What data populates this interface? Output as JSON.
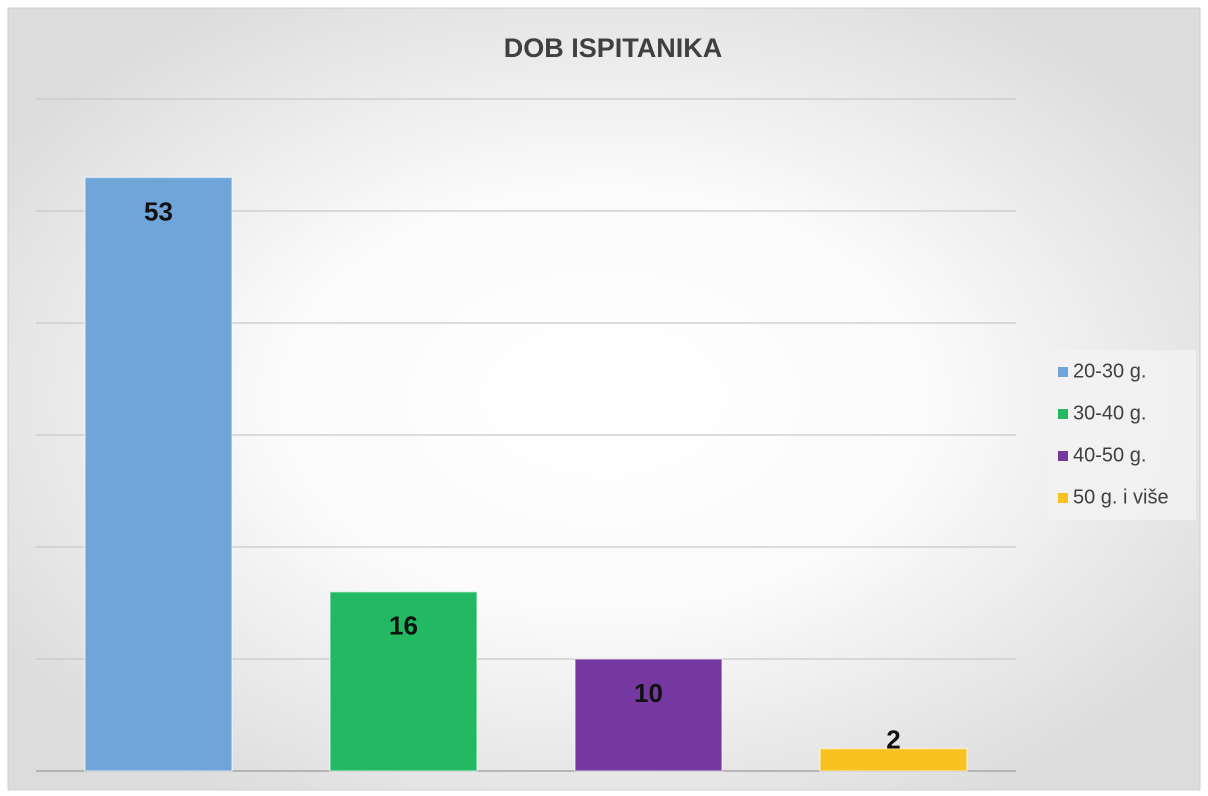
{
  "chart_data": {
    "type": "bar",
    "title": "DOB ISPITANIKA",
    "series": [
      {
        "name": "20-30 g.",
        "color": "#6fa5d8",
        "values": [
          53
        ]
      },
      {
        "name": "30-40 g.",
        "color": "#23b862",
        "values": [
          16
        ]
      },
      {
        "name": "40-50 g.",
        "color": "#7538a0",
        "values": [
          10
        ]
      },
      {
        "name": "50 g. i više",
        "color": "#f8c221",
        "values": [
          2
        ]
      }
    ],
    "ylim": [
      0,
      60
    ],
    "yticks": [
      0,
      10,
      20,
      30,
      40,
      50,
      60
    ],
    "grid": true,
    "legend": "right"
  }
}
